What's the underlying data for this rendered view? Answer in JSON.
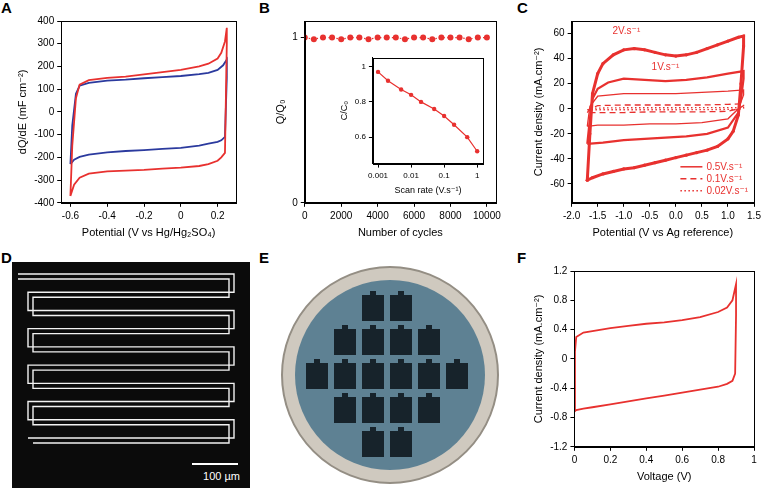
{
  "chart_data": [
    {
      "panel": "A",
      "type": "line",
      "xlabel": "Potential (V vs Hg/Hg₂SO₄)",
      "ylabel": "dQ/dE (mF cm⁻²)",
      "xlim": [
        -0.65,
        0.3
      ],
      "ylim": [
        -400,
        400
      ],
      "xticks": [
        -0.6,
        -0.4,
        -0.2,
        0,
        0.2
      ],
      "yticks": [
        -400,
        -300,
        -200,
        -100,
        0,
        100,
        200,
        300,
        400
      ],
      "grid": false,
      "series": [
        {
          "color": "#e8312f",
          "x": [
            -0.6,
            -0.59,
            -0.57,
            -0.55,
            -0.5,
            -0.4,
            -0.3,
            -0.2,
            -0.1,
            0,
            0.1,
            0.15,
            0.2,
            0.22,
            0.24,
            0.25,
            0.25,
            0.24,
            0.22,
            0.2,
            0.15,
            0.1,
            0,
            -0.1,
            -0.2,
            -0.3,
            -0.4,
            -0.5,
            -0.55,
            -0.58,
            -0.6
          ],
          "values": [
            -370,
            -150,
            60,
            120,
            140,
            150,
            155,
            165,
            175,
            185,
            200,
            212,
            235,
            260,
            310,
            370,
            300,
            -180,
            -200,
            -215,
            -230,
            -238,
            -245,
            -250,
            -255,
            -258,
            -262,
            -272,
            -290,
            -320,
            -370
          ]
        },
        {
          "color": "#2b3a9e",
          "x": [
            -0.6,
            -0.59,
            -0.57,
            -0.55,
            -0.5,
            -0.4,
            -0.3,
            -0.2,
            -0.1,
            0,
            0.1,
            0.15,
            0.2,
            0.23,
            0.25,
            0.25,
            0.24,
            0.22,
            0.2,
            0.15,
            0.1,
            0,
            -0.1,
            -0.2,
            -0.3,
            -0.4,
            -0.5,
            -0.55,
            -0.58,
            -0.6
          ],
          "values": [
            -230,
            -60,
            80,
            115,
            128,
            138,
            142,
            148,
            153,
            158,
            166,
            172,
            185,
            205,
            230,
            150,
            -110,
            -125,
            -132,
            -140,
            -148,
            -158,
            -163,
            -168,
            -172,
            -178,
            -188,
            -198,
            -210,
            -230
          ]
        }
      ]
    },
    {
      "panel": "B",
      "type": "scatter",
      "xlabel": "Number of cycles",
      "ylabel": "Q/Q₀",
      "xlim": [
        0,
        10500
      ],
      "ylim": [
        0,
        1.1
      ],
      "xticks": [
        0,
        2000,
        4000,
        6000,
        8000,
        10000
      ],
      "yticks": [
        0,
        1
      ],
      "grid": false,
      "series": [
        {
          "color": "#e8312f",
          "marker": "circle",
          "line_style": "dotted",
          "x": [
            0,
            500,
            1000,
            1500,
            2000,
            2500,
            3000,
            3500,
            4000,
            4500,
            5000,
            5500,
            6000,
            6500,
            7000,
            7500,
            8000,
            8500,
            9000,
            9500,
            10000
          ],
          "values": [
            1,
            0.99,
            1,
            1,
            0.99,
            1,
            1,
            0.99,
            1,
            1,
            1,
            0.99,
            1,
            1,
            0.99,
            1,
            1,
            1,
            0.99,
            1,
            1
          ]
        }
      ],
      "inset": {
        "type": "line",
        "log": "x",
        "xlabel": "Scan rate (V.s⁻¹)",
        "ylabel": "C/C₀",
        "xlim": [
          0.0007,
          1.5
        ],
        "ylim": [
          0.45,
          1.05
        ],
        "xticks": [
          0.001,
          0.01,
          0.1,
          1
        ],
        "yticks": [
          0.6,
          0.8,
          1
        ],
        "grid": false,
        "series": [
          {
            "color": "#e8312f",
            "marker": "circle",
            "line_style": "solid",
            "x": [
              0.001,
              0.002,
              0.005,
              0.01,
              0.02,
              0.05,
              0.1,
              0.2,
              0.5,
              1
            ],
            "values": [
              0.97,
              0.92,
              0.87,
              0.84,
              0.8,
              0.76,
              0.72,
              0.67,
              0.6,
              0.52
            ]
          }
        ]
      }
    },
    {
      "panel": "C",
      "type": "line",
      "xlabel": "Potential (V vs Ag reference)",
      "ylabel": "Current density (mA.cm⁻²)",
      "xlim": [
        -2,
        1.5
      ],
      "ylim": [
        -75,
        70
      ],
      "xticks": [
        {
          "value": -2,
          "label": "-2.0"
        },
        -1.5,
        {
          "value": -1,
          "label": "-1.0"
        },
        -0.5,
        {
          "value": 0,
          "label": "0.0"
        },
        0.5,
        {
          "value": 1,
          "label": "1.0"
        },
        1.5
      ],
      "yticks": [
        -60,
        -40,
        -20,
        0,
        20,
        40,
        60
      ],
      "grid": false,
      "legend": "lower right",
      "annotations": [
        {
          "text": "2V.s⁻¹",
          "x": -0.95,
          "y": 62,
          "color": "#e8312f"
        },
        {
          "text": "1V.s⁻¹",
          "x": -0.2,
          "y": 33,
          "color": "#e8312f"
        }
      ],
      "series": [
        {
          "color": "#e8312f",
          "marker": "circle",
          "line_style": "solid",
          "x": [
            -1.7,
            -1.65,
            -1.6,
            -1.5,
            -1.4,
            -1.2,
            -1.0,
            -0.8,
            -0.6,
            -0.4,
            -0.2,
            0,
            0.2,
            0.4,
            0.6,
            0.8,
            1.0,
            1.2,
            1.3,
            1.3,
            1.25,
            1.2,
            1.1,
            1.0,
            0.8,
            0.6,
            0.4,
            0.2,
            0,
            -0.2,
            -0.4,
            -0.6,
            -0.8,
            -1.0,
            -1.2,
            -1.4,
            -1.6,
            -1.7
          ],
          "values": [
            -57,
            -20,
            12,
            28,
            36,
            43,
            47,
            48,
            47,
            45,
            43,
            42,
            43,
            45,
            48,
            51,
            54,
            57,
            58,
            50,
            20,
            -5,
            -18,
            -24,
            -30,
            -33,
            -35,
            -37,
            -39,
            -41,
            -43,
            -45,
            -47,
            -48,
            -50,
            -52,
            -55,
            -57
          ]
        },
        {
          "color": "#e8312f",
          "line_style": "solid",
          "x": [
            -1.7,
            -1.65,
            -1.6,
            -1.5,
            -1.3,
            -1.0,
            -0.6,
            -0.2,
            0.2,
            0.6,
            1.0,
            1.3,
            1.3,
            1.25,
            1.2,
            1.0,
            0.6,
            0.2,
            -0.2,
            -0.6,
            -1.0,
            -1.4,
            -1.7
          ],
          "values": [
            -28,
            -8,
            8,
            16,
            21,
            24,
            23,
            22,
            23,
            25,
            28,
            30,
            24,
            8,
            -3,
            -15,
            -20,
            -22,
            -23,
            -24,
            -25,
            -27,
            -28
          ]
        },
        {
          "name": "0.5V.s⁻¹",
          "color": "#e8312f",
          "line_style": "solid",
          "x": [
            -1.7,
            -1.65,
            -1.5,
            -1.0,
            -0.5,
            0,
            0.5,
            1.0,
            1.3,
            1.3,
            1.2,
            1.0,
            0.5,
            0,
            -0.5,
            -1.0,
            -1.5,
            -1.7
          ],
          "values": [
            -14,
            2,
            10,
            12,
            12,
            12,
            13,
            14,
            15,
            11,
            0,
            -8,
            -11,
            -12,
            -12,
            -13,
            -13,
            -14
          ]
        },
        {
          "name": "0.1V.s⁻¹",
          "color": "#e8312f",
          "line_style": "dashed",
          "x": [
            -1.7,
            -1.65,
            -1.5,
            -1.0,
            -0.5,
            0,
            0.5,
            1.0,
            1.3,
            1.3,
            1.2,
            1.0,
            0.5,
            0,
            -0.5,
            -1.0,
            -1.5,
            -1.7
          ],
          "values": [
            -3,
            0,
            2.5,
            3,
            3,
            3,
            3,
            3.5,
            4,
            2.5,
            0,
            -2,
            -2.5,
            -2.5,
            -2.5,
            -3,
            -3,
            -3
          ]
        },
        {
          "name": "0.02V.s⁻¹",
          "color": "#e8312f",
          "line_style": "dotted",
          "x": [
            -1.7,
            -1.6,
            -1.0,
            0,
            1.0,
            1.3,
            1.3,
            1.2,
            0,
            -1.0,
            -1.6,
            -1.7
          ],
          "values": [
            -0.8,
            0.5,
            0.8,
            0.8,
            0.9,
            1,
            0.5,
            -0.5,
            -0.8,
            -0.8,
            -0.8,
            -0.8
          ]
        }
      ]
    },
    {
      "panel": "F",
      "type": "line",
      "xlabel": "Voltage (V)",
      "ylabel": "Current density (mA.cm⁻²)",
      "xlim": [
        0,
        1
      ],
      "ylim": [
        -1.2,
        1.2
      ],
      "xticks": [
        0,
        0.2,
        0.4,
        0.6,
        0.8,
        1
      ],
      "yticks": [
        -1.2,
        -0.8,
        -0.4,
        0,
        0.4,
        0.8,
        1.2
      ],
      "grid": false,
      "series": [
        {
          "color": "#e8312f",
          "line_style": "solid",
          "x": [
            0,
            0.003,
            0.01,
            0.05,
            0.1,
            0.2,
            0.3,
            0.4,
            0.5,
            0.6,
            0.7,
            0.8,
            0.85,
            0.88,
            0.9,
            0.9,
            0.895,
            0.88,
            0.85,
            0.8,
            0.7,
            0.6,
            0.5,
            0.4,
            0.3,
            0.2,
            0.1,
            0.05,
            0.01,
            0
          ],
          "values": [
            -0.7,
            0.1,
            0.3,
            0.36,
            0.38,
            0.42,
            0.45,
            0.48,
            0.5,
            0.53,
            0.57,
            0.64,
            0.7,
            0.8,
            1.02,
            0.6,
            -0.2,
            -0.3,
            -0.34,
            -0.38,
            -0.42,
            -0.46,
            -0.5,
            -0.54,
            -0.58,
            -0.62,
            -0.66,
            -0.68,
            -0.7,
            -0.72
          ]
        }
      ]
    }
  ],
  "photos": [
    {
      "panel": "D",
      "scale_bar": "100 µm"
    },
    {
      "panel": "E"
    }
  ]
}
